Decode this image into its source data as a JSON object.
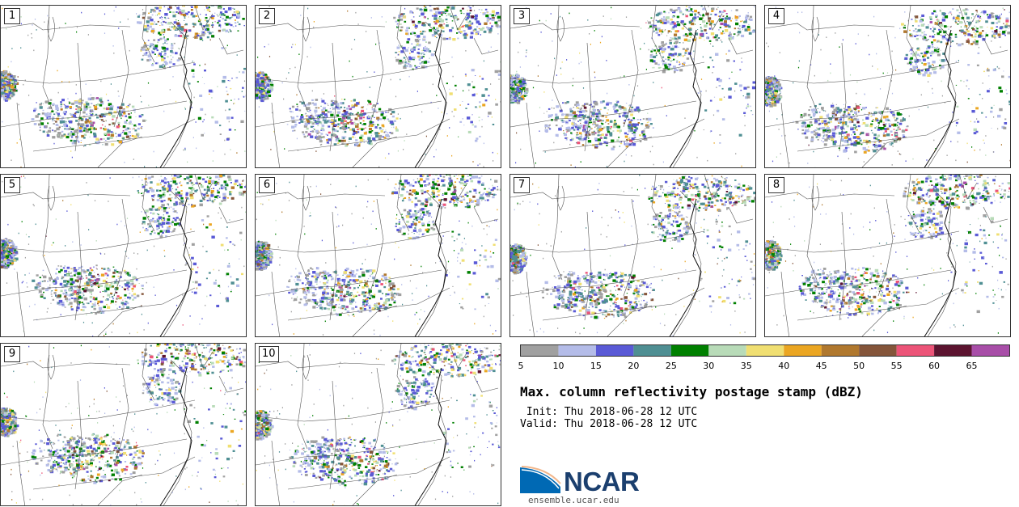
{
  "panels": [
    {
      "label": "1",
      "seed": 11
    },
    {
      "label": "2",
      "seed": 23
    },
    {
      "label": "3",
      "seed": 37
    },
    {
      "label": "4",
      "seed": 41
    },
    {
      "label": "5",
      "seed": 53
    },
    {
      "label": "6",
      "seed": 67
    },
    {
      "label": "7",
      "seed": 71
    },
    {
      "label": "8",
      "seed": 89
    },
    {
      "label": "9",
      "seed": 97
    },
    {
      "label": "10",
      "seed": 101
    }
  ],
  "colorbar": {
    "ticks": [
      "5",
      "10",
      "15",
      "20",
      "25",
      "30",
      "35",
      "40",
      "45",
      "50",
      "55",
      "60",
      "65"
    ],
    "colors": [
      "#a0a0a0",
      "#b4bce8",
      "#5a5ad6",
      "#4f8f93",
      "#008000",
      "#b8dbb8",
      "#f0df72",
      "#eba622",
      "#b0782e",
      "#84553a",
      "#ec5478",
      "#5c1430",
      "#a84ea8"
    ]
  },
  "title": "Max. column reflectivity postage stamp (dBZ)",
  "init": " Init: Thu 2018-06-28 12 UTC",
  "valid": "Valid: Thu 2018-06-28 12 UTC",
  "logo": {
    "name": "NCAR",
    "url": "ensemble.ucar.edu",
    "colors": {
      "blue": "#0069b4",
      "navy": "#1b3f6e"
    }
  }
}
